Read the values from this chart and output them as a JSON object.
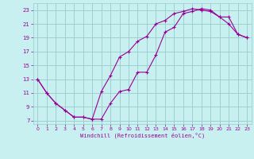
{
  "xlabel": "Windchill (Refroidissement éolien,°C)",
  "bg_color": "#c8f0f0",
  "line_color": "#990099",
  "grid_color": "#99cccc",
  "xlim": [
    -0.5,
    23.5
  ],
  "ylim": [
    6.5,
    24.0
  ],
  "xticks": [
    0,
    1,
    2,
    3,
    4,
    5,
    6,
    7,
    8,
    9,
    10,
    11,
    12,
    13,
    14,
    15,
    16,
    17,
    18,
    19,
    20,
    21,
    22,
    23
  ],
  "yticks": [
    7,
    9,
    11,
    13,
    15,
    17,
    19,
    21,
    23
  ],
  "line1_x": [
    0,
    1,
    2,
    3,
    4,
    5,
    6,
    7,
    8,
    9,
    10,
    11,
    12,
    13,
    14,
    15,
    16,
    17,
    18,
    19,
    20,
    21,
    22,
    23
  ],
  "line1_y": [
    13,
    11,
    9.5,
    8.5,
    7.5,
    7.5,
    7.2,
    7.2,
    9.5,
    11.2,
    11.5,
    14.0,
    14.0,
    16.5,
    19.8,
    20.5,
    22.5,
    22.8,
    23.2,
    23.0,
    22.0,
    21.0,
    19.5,
    19.0
  ],
  "line2_x": [
    0,
    1,
    2,
    3,
    4,
    5,
    6,
    7,
    8,
    9,
    10,
    11,
    12,
    13,
    14,
    15,
    16,
    17,
    18,
    19,
    20,
    21,
    22,
    23
  ],
  "line2_y": [
    13,
    11,
    9.5,
    8.5,
    7.5,
    7.5,
    7.2,
    11.2,
    13.5,
    16.2,
    17.0,
    18.5,
    19.2,
    21.0,
    21.5,
    22.5,
    22.8,
    23.2,
    23.0,
    22.8,
    22.0,
    22.0,
    19.5,
    19.0
  ]
}
